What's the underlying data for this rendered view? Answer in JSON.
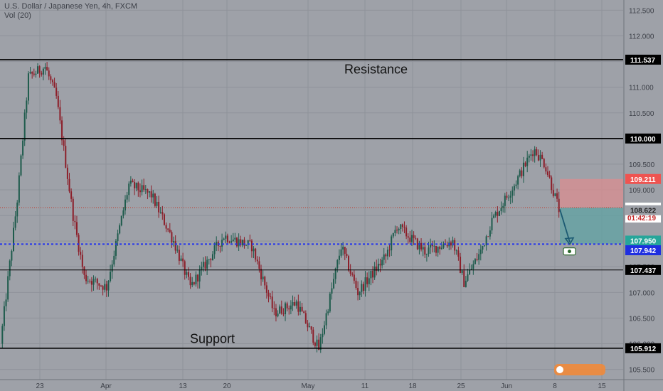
{
  "header": {
    "symbol_line": "U.S. Dollar / Japanese Yen, 4h, FXCM",
    "volume_line": "Vol (20)"
  },
  "colors": {
    "background": "#9ea1a8",
    "up": "#1e5b4c",
    "down": "#8c1f2a",
    "grid": "#8f929a",
    "level_line": "#000000",
    "entry_line": "#2233ee",
    "stop_zone": "#d98e90",
    "target_zone": "#5fa3a3",
    "arrow": "#1c5a72"
  },
  "chart_data": {
    "type": "candlestick",
    "title": "U.S. Dollar / Japanese Yen, 4h, FXCM",
    "ylim": [
      105.3,
      112.7
    ],
    "y_ticks": [
      "112.500",
      "112.000",
      "111.500",
      "111.000",
      "110.500",
      "110.000",
      "109.500",
      "109.000",
      "108.500",
      "108.000",
      "107.500",
      "107.000",
      "106.500",
      "106.000",
      "105.500"
    ],
    "x_ticks": [
      "23",
      "Apr",
      "13",
      "20",
      "May",
      "11",
      "18",
      "25",
      "Jun",
      "8",
      "15"
    ],
    "anchors": [
      {
        "t": 0.0,
        "v": 106.0
      },
      {
        "t": 0.03,
        "v": 108.8
      },
      {
        "t": 0.05,
        "v": 111.2
      },
      {
        "t": 0.08,
        "v": 111.4
      },
      {
        "t": 0.1,
        "v": 110.8
      },
      {
        "t": 0.13,
        "v": 108.5
      },
      {
        "t": 0.15,
        "v": 107.3
      },
      {
        "t": 0.19,
        "v": 107.1
      },
      {
        "t": 0.23,
        "v": 109.1
      },
      {
        "t": 0.27,
        "v": 108.9
      },
      {
        "t": 0.31,
        "v": 108.0
      },
      {
        "t": 0.34,
        "v": 107.1
      },
      {
        "t": 0.4,
        "v": 108.1
      },
      {
        "t": 0.45,
        "v": 107.9
      },
      {
        "t": 0.49,
        "v": 106.6
      },
      {
        "t": 0.53,
        "v": 106.8
      },
      {
        "t": 0.57,
        "v": 105.9
      },
      {
        "t": 0.61,
        "v": 107.9
      },
      {
        "t": 0.64,
        "v": 107.0
      },
      {
        "t": 0.69,
        "v": 107.7
      },
      {
        "t": 0.71,
        "v": 108.3
      },
      {
        "t": 0.76,
        "v": 107.8
      },
      {
        "t": 0.81,
        "v": 108.0
      },
      {
        "t": 0.83,
        "v": 107.2
      },
      {
        "t": 0.86,
        "v": 107.8
      },
      {
        "t": 0.88,
        "v": 108.4
      },
      {
        "t": 0.92,
        "v": 109.1
      },
      {
        "t": 0.955,
        "v": 109.8
      },
      {
        "t": 0.975,
        "v": 109.5
      },
      {
        "t": 1.0,
        "v": 108.62
      }
    ],
    "horizontal_levels": [
      {
        "label": "111.537",
        "value": 111.537
      },
      {
        "label": "110.000",
        "value": 110.0
      },
      {
        "label": "107.437",
        "value": 107.437
      },
      {
        "label": "105.912",
        "value": 105.912
      }
    ],
    "entry_level": {
      "label": "107.942",
      "value": 107.942
    },
    "trade": {
      "entry": 108.653,
      "stop": 109.211,
      "target": 107.95,
      "entry_label": "108.653",
      "stop_label": "109.211",
      "target_label": "107.950"
    },
    "last_price": {
      "label": "108.622",
      "value": 108.622
    },
    "countdown": "01:42:19",
    "annotations": [
      {
        "text": "Resistance",
        "value": 111.35
      },
      {
        "text": "Support",
        "value": 106.1
      }
    ]
  }
}
